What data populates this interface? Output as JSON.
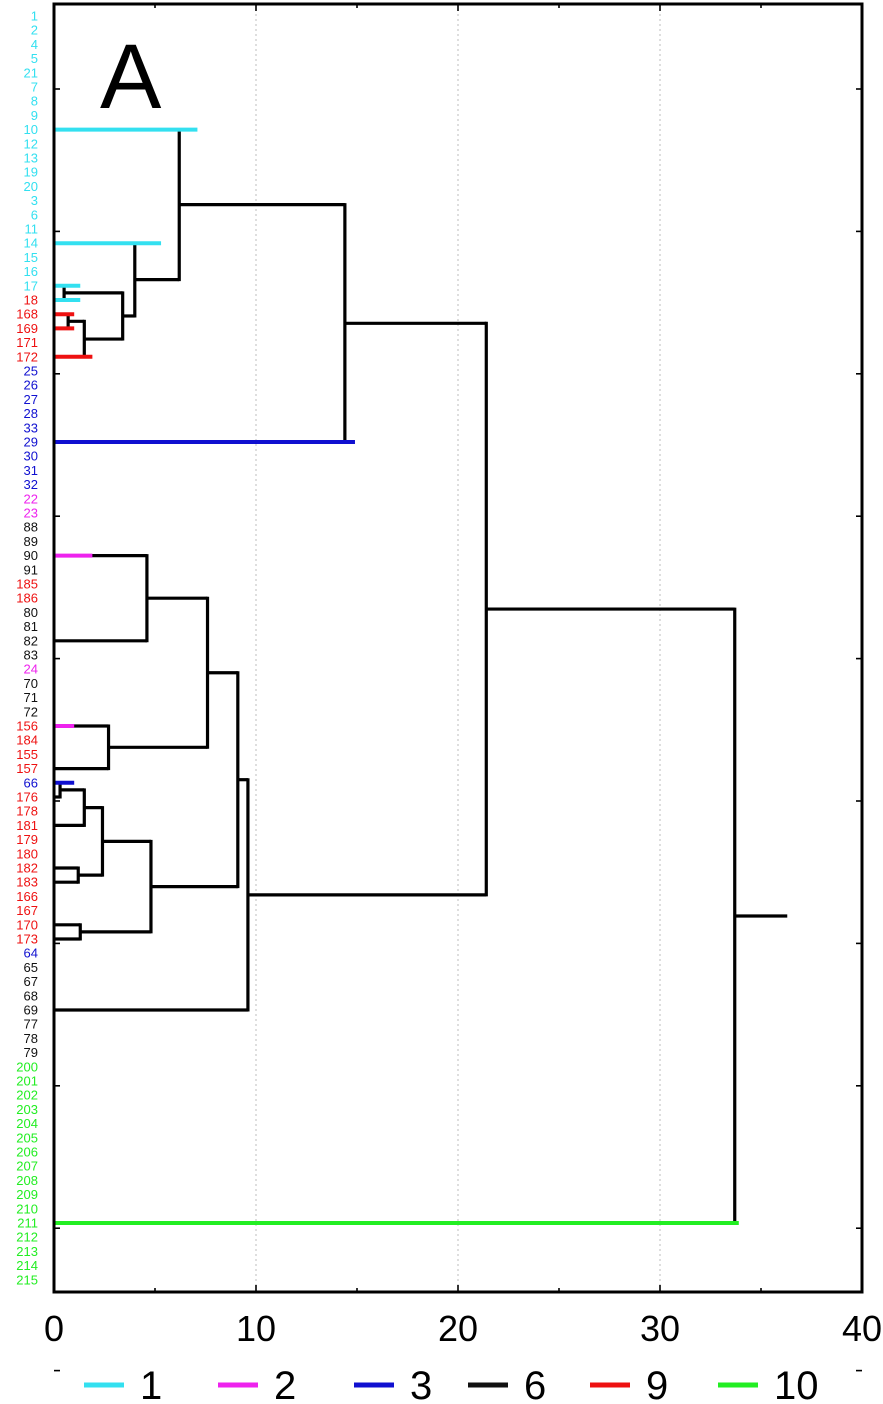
{
  "chart_data": {
    "type": "dendrogram",
    "panel_label": "A",
    "xlim": [
      0,
      40
    ],
    "x_ticks": [
      0,
      10,
      20,
      30,
      40
    ],
    "x_tick_labels": [
      "0",
      "10",
      "20",
      "30",
      "40"
    ],
    "grid": "vertical dotted at 10, 20, 30",
    "colors": {
      "1": "#33e0f0",
      "2": "#ee22ee",
      "3": "#1010d0",
      "6": "#111111",
      "9": "#ee1111",
      "10": "#22ee22"
    },
    "leaves": [
      {
        "label": "1",
        "group": "1"
      },
      {
        "label": "2",
        "group": "1"
      },
      {
        "label": "4",
        "group": "1"
      },
      {
        "label": "5",
        "group": "1"
      },
      {
        "label": "21",
        "group": "1"
      },
      {
        "label": "7",
        "group": "1"
      },
      {
        "label": "8",
        "group": "1"
      },
      {
        "label": "9",
        "group": "1"
      },
      {
        "label": "10",
        "group": "1"
      },
      {
        "label": "12",
        "group": "1"
      },
      {
        "label": "13",
        "group": "1"
      },
      {
        "label": "19",
        "group": "1"
      },
      {
        "label": "20",
        "group": "1"
      },
      {
        "label": "3",
        "group": "1"
      },
      {
        "label": "6",
        "group": "1"
      },
      {
        "label": "11",
        "group": "1"
      },
      {
        "label": "14",
        "group": "1"
      },
      {
        "label": "15",
        "group": "1"
      },
      {
        "label": "16",
        "group": "1"
      },
      {
        "label": "17",
        "group": "1"
      },
      {
        "label": "18",
        "group": "9"
      },
      {
        "label": "168",
        "group": "9"
      },
      {
        "label": "169",
        "group": "9"
      },
      {
        "label": "171",
        "group": "9"
      },
      {
        "label": "172",
        "group": "9"
      },
      {
        "label": "25",
        "group": "3"
      },
      {
        "label": "26",
        "group": "3"
      },
      {
        "label": "27",
        "group": "3"
      },
      {
        "label": "28",
        "group": "3"
      },
      {
        "label": "33",
        "group": "3"
      },
      {
        "label": "29",
        "group": "3"
      },
      {
        "label": "30",
        "group": "3"
      },
      {
        "label": "31",
        "group": "3"
      },
      {
        "label": "32",
        "group": "3"
      },
      {
        "label": "22",
        "group": "2"
      },
      {
        "label": "23",
        "group": "2"
      },
      {
        "label": "88",
        "group": "6"
      },
      {
        "label": "89",
        "group": "6"
      },
      {
        "label": "90",
        "group": "6"
      },
      {
        "label": "91",
        "group": "6"
      },
      {
        "label": "185",
        "group": "9"
      },
      {
        "label": "186",
        "group": "9"
      },
      {
        "label": "80",
        "group": "6"
      },
      {
        "label": "81",
        "group": "6"
      },
      {
        "label": "82",
        "group": "6"
      },
      {
        "label": "83",
        "group": "6"
      },
      {
        "label": "24",
        "group": "2"
      },
      {
        "label": "70",
        "group": "6"
      },
      {
        "label": "71",
        "group": "6"
      },
      {
        "label": "72",
        "group": "6"
      },
      {
        "label": "156",
        "group": "9"
      },
      {
        "label": "184",
        "group": "9"
      },
      {
        "label": "155",
        "group": "9"
      },
      {
        "label": "157",
        "group": "9"
      },
      {
        "label": "66",
        "group": "3"
      },
      {
        "label": "176",
        "group": "9"
      },
      {
        "label": "178",
        "group": "9"
      },
      {
        "label": "181",
        "group": "9"
      },
      {
        "label": "179",
        "group": "9"
      },
      {
        "label": "180",
        "group": "9"
      },
      {
        "label": "182",
        "group": "9"
      },
      {
        "label": "183",
        "group": "9"
      },
      {
        "label": "166",
        "group": "9"
      },
      {
        "label": "167",
        "group": "9"
      },
      {
        "label": "170",
        "group": "9"
      },
      {
        "label": "173",
        "group": "9"
      },
      {
        "label": "64",
        "group": "3"
      },
      {
        "label": "65",
        "group": "6"
      },
      {
        "label": "67",
        "group": "6"
      },
      {
        "label": "68",
        "group": "6"
      },
      {
        "label": "69",
        "group": "6"
      },
      {
        "label": "77",
        "group": "6"
      },
      {
        "label": "78",
        "group": "6"
      },
      {
        "label": "79",
        "group": "6"
      },
      {
        "label": "200",
        "group": "10"
      },
      {
        "label": "201",
        "group": "10"
      },
      {
        "label": "202",
        "group": "10"
      },
      {
        "label": "203",
        "group": "10"
      },
      {
        "label": "204",
        "group": "10"
      },
      {
        "label": "205",
        "group": "10"
      },
      {
        "label": "206",
        "group": "10"
      },
      {
        "label": "207",
        "group": "10"
      },
      {
        "label": "208",
        "group": "10"
      },
      {
        "label": "209",
        "group": "10"
      },
      {
        "label": "210",
        "group": "10"
      },
      {
        "label": "211",
        "group": "10"
      },
      {
        "label": "212",
        "group": "10"
      },
      {
        "label": "213",
        "group": "10"
      },
      {
        "label": "214",
        "group": "10"
      },
      {
        "label": "215",
        "group": "10"
      }
    ],
    "nodes": [
      {
        "id": "n1",
        "height": 0.5,
        "children": [
          "L:17",
          "L:18"
        ]
      },
      {
        "id": "n2",
        "height": 0.7,
        "children": [
          "L:168",
          "L:169"
        ]
      },
      {
        "id": "n3",
        "height": 1.5,
        "children": [
          "n2",
          "L:172"
        ]
      },
      {
        "id": "n4",
        "height": 3.4,
        "children": [
          "n1",
          "n3"
        ]
      },
      {
        "id": "n5",
        "height": 4.0,
        "children": [
          "L:14",
          "n4"
        ]
      },
      {
        "id": "n6",
        "height": 6.2,
        "children": [
          "L:10",
          "n5"
        ]
      },
      {
        "id": "n7",
        "height": 14.4,
        "children": [
          "n6",
          "L:29"
        ]
      },
      {
        "id": "n8",
        "height": 4.6,
        "children": [
          "L:90",
          "L:82"
        ]
      },
      {
        "id": "n9",
        "height": 2.7,
        "children": [
          "L:156",
          "L:157"
        ]
      },
      {
        "id": "n10",
        "height": 7.6,
        "children": [
          "n8",
          "n9"
        ]
      },
      {
        "id": "n11",
        "height": 0.3,
        "children": [
          "L:66",
          "L:176"
        ]
      },
      {
        "id": "n12",
        "height": 1.5,
        "children": [
          "n11",
          "L:181"
        ]
      },
      {
        "id": "n13",
        "height": 1.2,
        "children": [
          "L:182",
          "L:183"
        ]
      },
      {
        "id": "n14",
        "height": 2.4,
        "children": [
          "n12",
          "n13"
        ]
      },
      {
        "id": "n15",
        "height": 1.3,
        "children": [
          "L:170",
          "L:173"
        ]
      },
      {
        "id": "n16",
        "height": 4.8,
        "children": [
          "n14",
          "n15"
        ]
      },
      {
        "id": "n17",
        "height": 9.1,
        "children": [
          "n10",
          "n16"
        ]
      },
      {
        "id": "n18",
        "height": 9.6,
        "children": [
          "n17",
          "L:69"
        ]
      },
      {
        "id": "n19",
        "height": 21.4,
        "children": [
          "n7",
          "n18"
        ]
      },
      {
        "id": "n20",
        "height": 33.7,
        "children": [
          "n19",
          "L:211"
        ]
      }
    ],
    "root_stub_end": 36.3
  },
  "legend": [
    {
      "label": "1",
      "color": "#33e0f0"
    },
    {
      "label": "2",
      "color": "#ee22ee"
    },
    {
      "label": "3",
      "color": "#1010d0"
    },
    {
      "label": "6",
      "color": "#111111"
    },
    {
      "label": "9",
      "color": "#ee1111"
    },
    {
      "label": "10",
      "color": "#22ee22"
    }
  ],
  "branch_colors": [
    {
      "leaf": "10",
      "to": 7.1,
      "color": "#33e0f0"
    },
    {
      "leaf": "14",
      "to": 5.3,
      "color": "#33e0f0"
    },
    {
      "leaf": "17",
      "to": 1.3,
      "color": "#33e0f0"
    },
    {
      "leaf": "18",
      "to": 1.3,
      "color": "#33e0f0"
    },
    {
      "leaf": "168",
      "to": 1.0,
      "color": "#ee1111"
    },
    {
      "leaf": "169",
      "to": 1.0,
      "color": "#ee1111"
    },
    {
      "leaf": "172",
      "to": 1.9,
      "color": "#ee1111"
    },
    {
      "leaf": "29",
      "to": 14.9,
      "color": "#1010d0"
    },
    {
      "leaf": "90",
      "to": 1.9,
      "color": "#ee22ee"
    },
    {
      "leaf": "156",
      "to": 1.0,
      "color": "#ee22ee"
    },
    {
      "leaf": "66",
      "to": 1.0,
      "color": "#1010d0"
    },
    {
      "leaf": "211",
      "to": 33.9,
      "color": "#22ee22"
    }
  ]
}
